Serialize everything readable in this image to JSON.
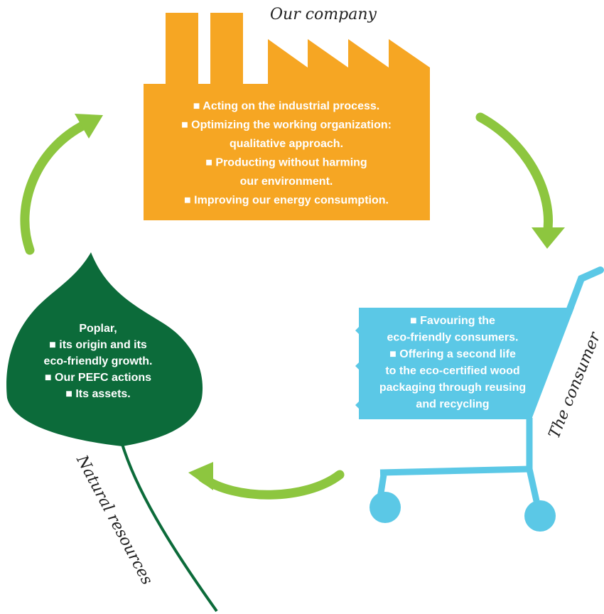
{
  "company": {
    "label": "Our company",
    "lines": [
      "■ Acting on the industrial process.",
      "■ Optimizing the working organization:",
      "qualitative approach.",
      "■  Producting without harming",
      "our environment.",
      "■ Improving our energy consumption."
    ]
  },
  "consumer": {
    "label": "The consumer",
    "lines": [
      "■ Favouring the",
      "eco-friendly consumers.",
      "■ Offering a second life",
      "to the eco-certified wood",
      "packaging through reusing",
      "and recycling"
    ]
  },
  "resources": {
    "label": "Natural resources",
    "lines": [
      "Poplar,",
      "■ its origin and its",
      "eco-friendly growth.",
      "■ Our PEFC actions",
      "■ Its assets."
    ]
  }
}
